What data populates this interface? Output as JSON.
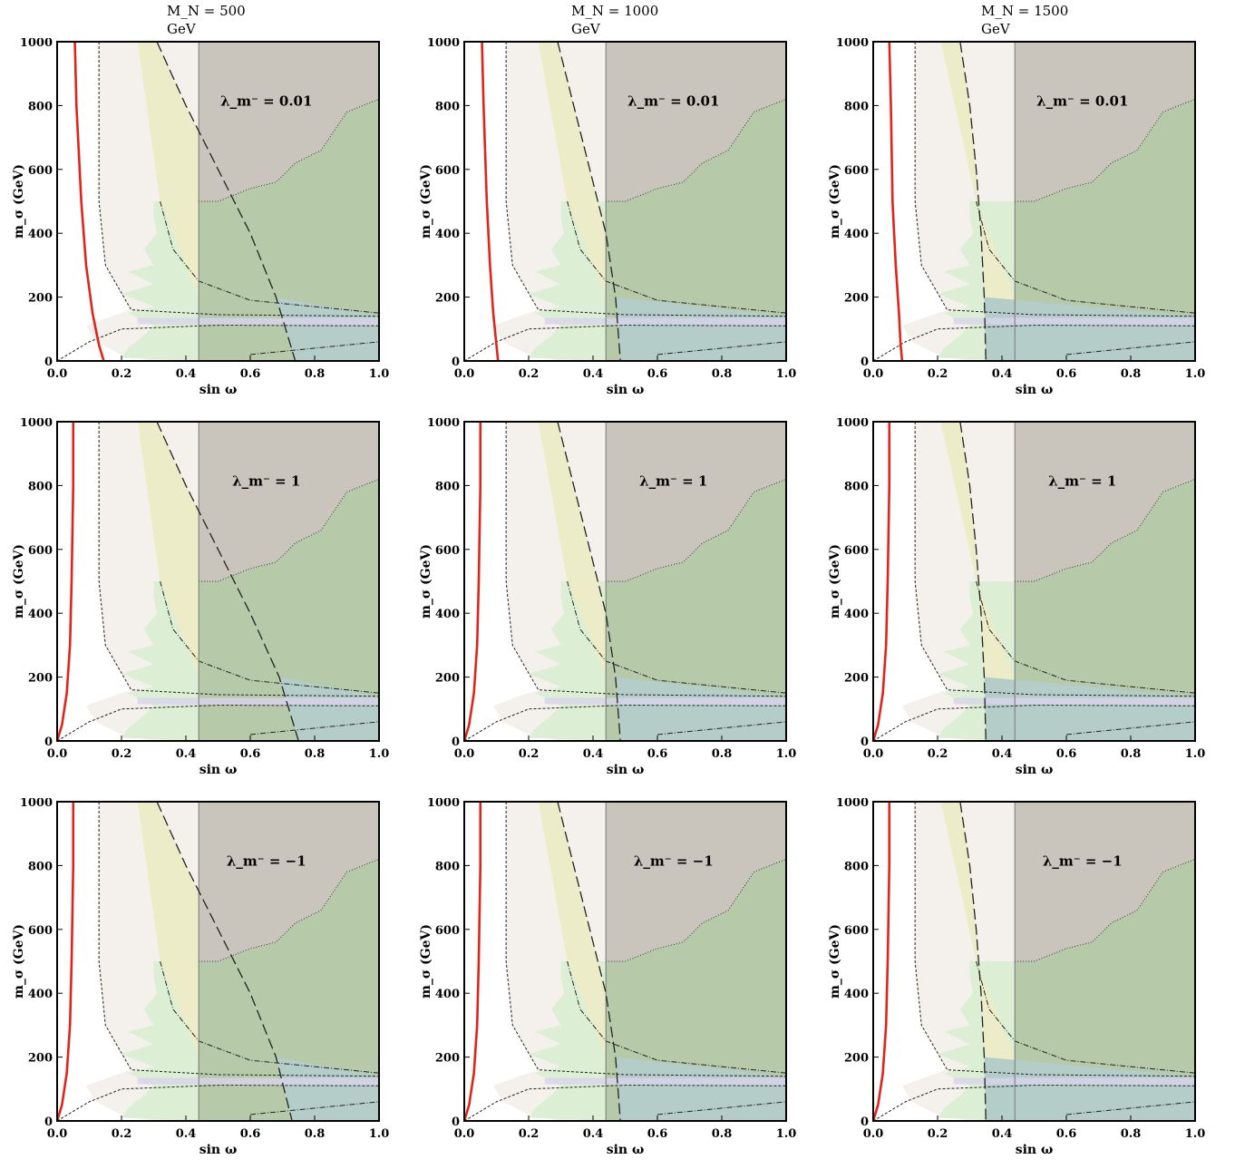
{
  "column_headers": [
    "M_N = 500 GeV",
    "M_N = 1000 GeV",
    "M_N = 1500 GeV"
  ],
  "row_labels": [
    "λ_m⁻ = 0.01",
    "λ_m⁻ = 1",
    "λ_m⁻ = −1"
  ],
  "colors": {
    "red_curve": "#e2231a",
    "region_white": "#f4f0eb",
    "region_light_green": "#dcefd4",
    "region_yellow": "#ecedc8",
    "region_gray": "#c9c5bd",
    "region_green": "#b6c9a8",
    "region_teal": "#b4cdc8",
    "region_lavender": "#d9d3ec"
  },
  "chart_data": [
    {
      "type": "area",
      "panel": "r1c1",
      "header": "M_N = 500 GeV",
      "label": "λ_m⁻ = 0.01",
      "xlabel": "sin ω",
      "ylabel": "m_σ (GeV)",
      "xlim": [
        0,
        1
      ],
      "ylim": [
        0,
        1000
      ],
      "xticks": [
        "0.0",
        "0.2",
        "0.4",
        "0.6",
        "0.8",
        "1.0"
      ],
      "yticks": [
        "0",
        "200",
        "400",
        "600",
        "800",
        "1000"
      ],
      "red_curve": {
        "x": [
          0.055,
          0.06,
          0.075,
          0.09,
          0.11,
          0.13,
          0.145
        ],
        "y": [
          1000,
          800,
          500,
          300,
          150,
          50,
          0
        ]
      },
      "long_dash_boundary": {
        "x": [
          0.31,
          0.4,
          0.5,
          0.6,
          0.68,
          0.74
        ],
        "y": [
          1000,
          800,
          600,
          400,
          200,
          0
        ]
      }
    },
    {
      "type": "area",
      "panel": "r1c2",
      "header": "M_N = 1000 GeV",
      "label": "λ_m⁻ = 0.01",
      "xlabel": "sin ω",
      "ylabel": "m_σ (GeV)",
      "xlim": [
        0,
        1
      ],
      "ylim": [
        0,
        1000
      ],
      "xticks": [
        "0.0",
        "0.2",
        "0.4",
        "0.6",
        "0.8",
        "1.0"
      ],
      "yticks": [
        "0",
        "200",
        "400",
        "600",
        "800",
        "1000"
      ],
      "red_curve": {
        "x": [
          0.055,
          0.06,
          0.07,
          0.08,
          0.09,
          0.1,
          0.105
        ],
        "y": [
          1000,
          800,
          500,
          300,
          150,
          50,
          0
        ]
      },
      "long_dash_boundary": {
        "x": [
          0.29,
          0.34,
          0.39,
          0.44,
          0.47,
          0.485
        ],
        "y": [
          1000,
          800,
          600,
          400,
          200,
          0
        ]
      }
    },
    {
      "type": "area",
      "panel": "r1c3",
      "header": "M_N = 1500 GeV",
      "label": "λ_m⁻ = 0.01",
      "xlabel": "sin ω",
      "ylabel": "m_σ (GeV)",
      "xlim": [
        0,
        1
      ],
      "ylim": [
        0,
        1000
      ],
      "xticks": [
        "0.0",
        "0.2",
        "0.4",
        "0.6",
        "0.8",
        "1.0"
      ],
      "yticks": [
        "0",
        "200",
        "400",
        "600",
        "800",
        "1000"
      ],
      "red_curve": {
        "x": [
          0.05,
          0.055,
          0.06,
          0.07,
          0.08,
          0.085,
          0.09
        ],
        "y": [
          1000,
          800,
          500,
          300,
          150,
          50,
          0
        ]
      },
      "long_dash_boundary": {
        "x": [
          0.27,
          0.3,
          0.32,
          0.335,
          0.345,
          0.35
        ],
        "y": [
          1000,
          800,
          600,
          400,
          200,
          0
        ]
      }
    },
    {
      "type": "area",
      "panel": "r2c1",
      "header": "",
      "label": "λ_m⁻ = 1",
      "xlabel": "sin ω",
      "ylabel": "m_σ (GeV)",
      "xlim": [
        0,
        1
      ],
      "ylim": [
        0,
        1000
      ],
      "xticks": [
        "0.0",
        "0.2",
        "0.4",
        "0.6",
        "0.8",
        "1.0"
      ],
      "yticks": [
        "0",
        "200",
        "400",
        "600",
        "800",
        "1000"
      ],
      "red_curve": {
        "x": [
          0.05,
          0.05,
          0.045,
          0.04,
          0.03,
          0.015,
          0.0
        ],
        "y": [
          1000,
          800,
          500,
          300,
          150,
          50,
          0
        ]
      },
      "long_dash_boundary": {
        "x": [
          0.31,
          0.4,
          0.5,
          0.6,
          0.69,
          0.75
        ],
        "y": [
          1000,
          800,
          600,
          400,
          200,
          0
        ]
      }
    },
    {
      "type": "area",
      "panel": "r2c2",
      "header": "",
      "label": "λ_m⁻ = 1",
      "xlabel": "sin ω",
      "ylabel": "m_σ (GeV)",
      "xlim": [
        0,
        1
      ],
      "ylim": [
        0,
        1000
      ],
      "xticks": [
        "0.0",
        "0.2",
        "0.4",
        "0.6",
        "0.8",
        "1.0"
      ],
      "yticks": [
        "0",
        "200",
        "400",
        "600",
        "800",
        "1000"
      ],
      "red_curve": {
        "x": [
          0.05,
          0.05,
          0.045,
          0.04,
          0.03,
          0.015,
          0.0
        ],
        "y": [
          1000,
          800,
          500,
          300,
          150,
          50,
          0
        ]
      },
      "long_dash_boundary": {
        "x": [
          0.29,
          0.34,
          0.39,
          0.44,
          0.47,
          0.485
        ],
        "y": [
          1000,
          800,
          600,
          400,
          200,
          0
        ]
      }
    },
    {
      "type": "area",
      "panel": "r2c3",
      "header": "",
      "label": "λ_m⁻ = 1",
      "xlabel": "sin ω",
      "ylabel": "m_σ (GeV)",
      "xlim": [
        0,
        1
      ],
      "ylim": [
        0,
        1000
      ],
      "xticks": [
        "0.0",
        "0.2",
        "0.4",
        "0.6",
        "0.8",
        "1.0"
      ],
      "yticks": [
        "0",
        "200",
        "400",
        "600",
        "800",
        "1000"
      ],
      "red_curve": {
        "x": [
          0.05,
          0.05,
          0.045,
          0.04,
          0.03,
          0.015,
          0.0
        ],
        "y": [
          1000,
          800,
          500,
          300,
          150,
          50,
          0
        ]
      },
      "long_dash_boundary": {
        "x": [
          0.27,
          0.3,
          0.32,
          0.335,
          0.345,
          0.35
        ],
        "y": [
          1000,
          800,
          600,
          400,
          200,
          0
        ]
      }
    },
    {
      "type": "area",
      "panel": "r3c1",
      "header": "",
      "label": "λ_m⁻ = −1",
      "xlabel": "sin ω",
      "ylabel": "m_σ (GeV)",
      "xlim": [
        0,
        1
      ],
      "ylim": [
        0,
        1000
      ],
      "xticks": [
        "0.0",
        "0.2",
        "0.4",
        "0.6",
        "0.8",
        "1.0"
      ],
      "yticks": [
        "0",
        "200",
        "400",
        "600",
        "800",
        "1000"
      ],
      "red_curve": {
        "x": [
          0.05,
          0.05,
          0.045,
          0.04,
          0.03,
          0.015,
          0.0
        ],
        "y": [
          1000,
          800,
          500,
          300,
          150,
          50,
          0
        ]
      },
      "long_dash_boundary": {
        "x": [
          0.31,
          0.4,
          0.5,
          0.6,
          0.68,
          0.73
        ],
        "y": [
          1000,
          800,
          600,
          400,
          200,
          0
        ]
      }
    },
    {
      "type": "area",
      "panel": "r3c2",
      "header": "",
      "label": "λ_m⁻ = −1",
      "xlabel": "sin ω",
      "ylabel": "m_σ (GeV)",
      "xlim": [
        0,
        1
      ],
      "ylim": [
        0,
        1000
      ],
      "xticks": [
        "0.0",
        "0.2",
        "0.4",
        "0.6",
        "0.8",
        "1.0"
      ],
      "yticks": [
        "0",
        "200",
        "400",
        "600",
        "800",
        "1000"
      ],
      "red_curve": {
        "x": [
          0.05,
          0.05,
          0.045,
          0.04,
          0.03,
          0.015,
          0.0
        ],
        "y": [
          1000,
          800,
          500,
          300,
          150,
          50,
          0
        ]
      },
      "long_dash_boundary": {
        "x": [
          0.29,
          0.34,
          0.39,
          0.44,
          0.47,
          0.485
        ],
        "y": [
          1000,
          800,
          600,
          400,
          200,
          0
        ]
      }
    },
    {
      "type": "area",
      "panel": "r3c3",
      "header": "",
      "label": "λ_m⁻ = −1",
      "xlabel": "sin ω",
      "ylabel": "m_σ (GeV)",
      "xlim": [
        0,
        1
      ],
      "ylim": [
        0,
        1000
      ],
      "xticks": [
        "0.0",
        "0.2",
        "0.4",
        "0.6",
        "0.8",
        "1.0"
      ],
      "yticks": [
        "0",
        "200",
        "400",
        "600",
        "800",
        "1000"
      ],
      "red_curve": {
        "x": [
          0.05,
          0.05,
          0.045,
          0.04,
          0.03,
          0.015,
          0.0
        ],
        "y": [
          1000,
          800,
          500,
          300,
          150,
          50,
          0
        ]
      },
      "long_dash_boundary": {
        "x": [
          0.27,
          0.3,
          0.32,
          0.335,
          0.345,
          0.35
        ],
        "y": [
          1000,
          800,
          600,
          400,
          200,
          0
        ]
      }
    }
  ]
}
